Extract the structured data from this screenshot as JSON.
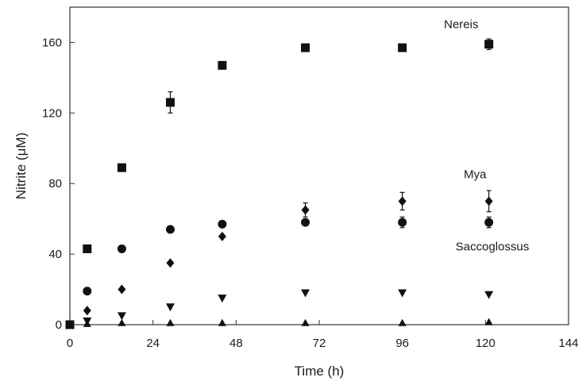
{
  "chart_data": {
    "type": "scatter",
    "xlabel": "Time (h)",
    "ylabel": "Nitrite (μM)",
    "xlim": [
      0,
      144
    ],
    "ylim": [
      0,
      180
    ],
    "xticks": [
      0,
      24,
      48,
      72,
      96,
      120,
      144
    ],
    "yticks": [
      0,
      40,
      80,
      120,
      160
    ],
    "grid": false,
    "annotations": [
      {
        "text": "Nereis",
        "x": 113,
        "y": 168
      },
      {
        "text": "Mya",
        "x": 117,
        "y": 83
      },
      {
        "text": "Saccoglossus",
        "x": 122,
        "y": 42
      }
    ],
    "series": [
      {
        "marker": "square",
        "x": [
          0,
          5,
          15,
          29,
          44,
          68,
          96,
          121
        ],
        "y": [
          0,
          43,
          89,
          126,
          147,
          157,
          157,
          159
        ],
        "error": [
          0,
          0,
          0,
          6,
          0,
          0,
          0,
          3
        ]
      },
      {
        "marker": "diamond",
        "x": [
          5,
          15,
          29,
          44,
          68,
          96,
          121
        ],
        "y": [
          8,
          20,
          35,
          50,
          65,
          70,
          70
        ],
        "error": [
          0,
          0,
          0,
          0,
          4,
          5,
          6
        ]
      },
      {
        "marker": "circle",
        "x": [
          5,
          15,
          29,
          44,
          68,
          96,
          121
        ],
        "y": [
          19,
          43,
          54,
          57,
          58,
          58,
          58
        ],
        "error": [
          0,
          0,
          0,
          0,
          0,
          3,
          3
        ]
      },
      {
        "marker": "triangle-down",
        "x": [
          5,
          15,
          29,
          44,
          68,
          96,
          121
        ],
        "y": [
          2,
          5,
          10,
          15,
          18,
          18,
          17
        ],
        "error": [
          0,
          0,
          0,
          0,
          0,
          0,
          0
        ]
      },
      {
        "marker": "triangle-up",
        "x": [
          5,
          15,
          29,
          44,
          68,
          96,
          121
        ],
        "y": [
          0.5,
          1,
          1,
          1,
          1,
          1,
          1.5
        ],
        "error": [
          0,
          0,
          0,
          0,
          0,
          0,
          0
        ]
      }
    ]
  }
}
